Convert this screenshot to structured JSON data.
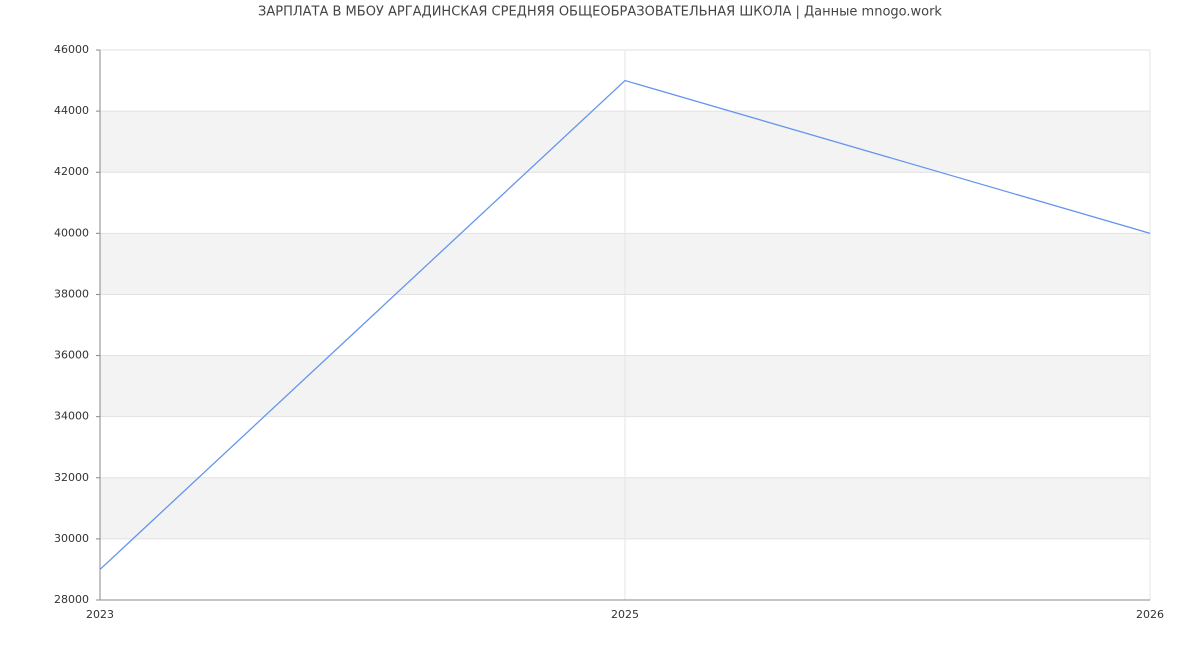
{
  "chart_data": {
    "type": "line",
    "title": "ЗАРПЛАТА В МБОУ АРГАДИНСКАЯ СРЕДНЯЯ ОБЩЕОБРАЗОВАТЕЛЬНАЯ ШКОЛА | Данные mnogo.work",
    "categories": [
      "2023",
      "2025",
      "2026"
    ],
    "series": [
      {
        "color": "#6495ed",
        "values": [
          29000,
          45000,
          40000
        ]
      }
    ],
    "ylim": [
      28000,
      46000
    ],
    "yticks": [
      28000,
      30000,
      32000,
      34000,
      36000,
      38000,
      40000,
      42000,
      44000,
      46000
    ],
    "grid": true
  }
}
